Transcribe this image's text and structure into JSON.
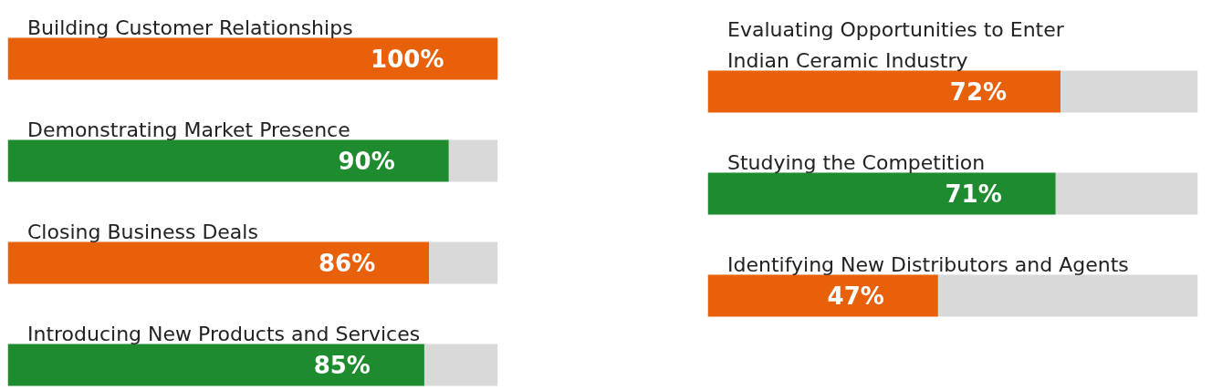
{
  "chart_data": [
    {
      "type": "bar",
      "orientation": "horizontal",
      "stacked": true,
      "xlim": [
        0,
        100
      ],
      "tick_labels": false,
      "grid": false,
      "categories": [
        "Building Customer Relationships",
        "Demonstrating Market Presence",
        "Closing Business Deals",
        "Introducing New Products and Services"
      ],
      "series": [
        {
          "colors": [
            "#e8600a",
            "#1e8c2e",
            "#e8600a",
            "#1e8c2e"
          ],
          "values": [
            100,
            90,
            86,
            85
          ],
          "value_labels": [
            "100%",
            "90%",
            "86%",
            "85%"
          ]
        },
        {
          "color": "#d9d9d9",
          "values": [
            0,
            10,
            14,
            15
          ]
        }
      ]
    },
    {
      "type": "bar",
      "orientation": "horizontal",
      "stacked": true,
      "xlim": [
        0,
        100
      ],
      "tick_labels": false,
      "grid": false,
      "categories": [
        "Evaluating Opportunities to Enter Indian Ceramic Industry",
        "Studying the Competition",
        "Identifying New Distributors and Agents"
      ],
      "series": [
        {
          "colors": [
            "#e8600a",
            "#1e8c2e",
            "#e8600a"
          ],
          "values": [
            72,
            71,
            47
          ],
          "value_labels": [
            "72%",
            "71%",
            "47%"
          ]
        },
        {
          "color": "#d9d9d9",
          "values": [
            28,
            29,
            53
          ]
        }
      ]
    }
  ]
}
